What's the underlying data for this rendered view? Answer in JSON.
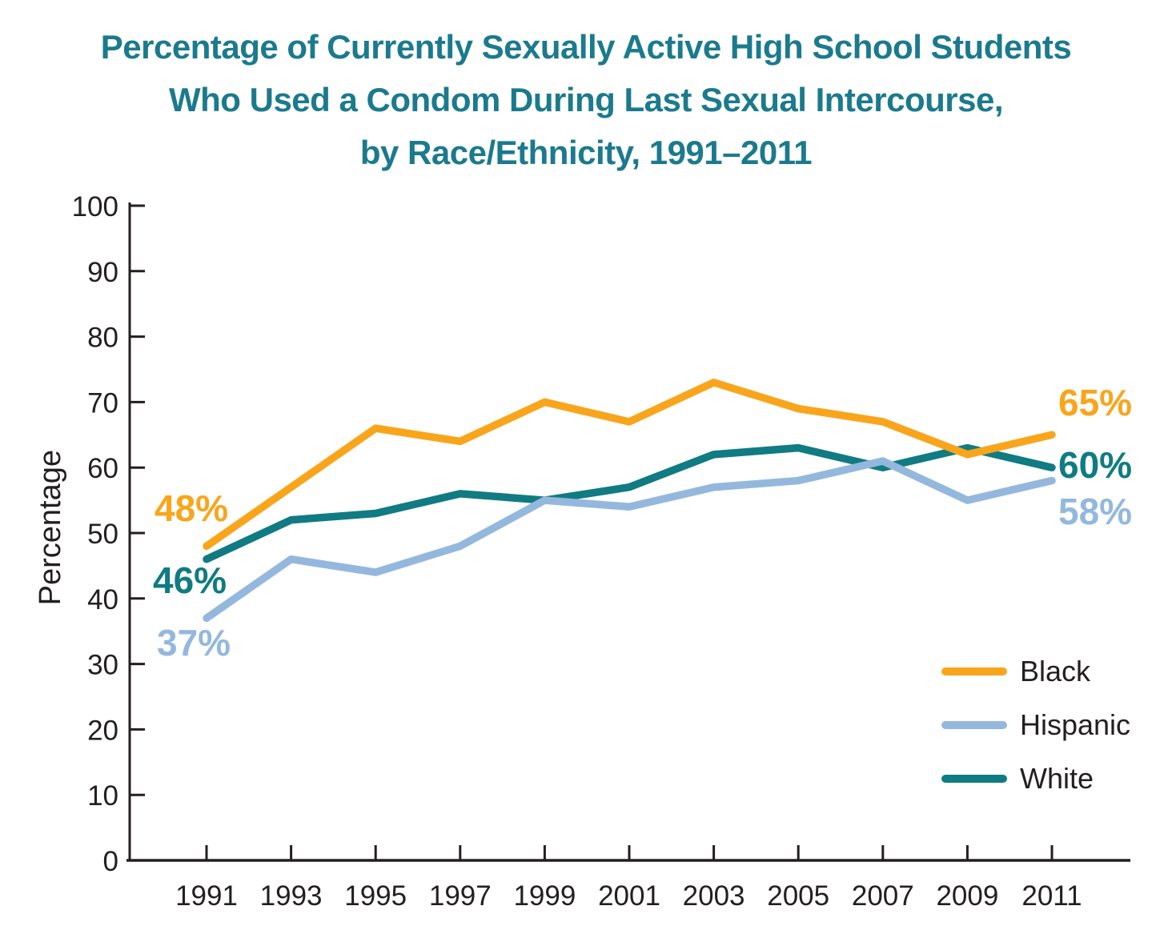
{
  "chart_data": {
    "type": "line",
    "title": "Percentage of Currently Sexually Active High School Students Who Used a Condom During Last Sexual Intercourse, by Race/Ethnicity, 1991–2011",
    "title_lines": [
      "Percentage of Currently Sexually Active High School Students",
      "Who Used a Condom During Last Sexual Intercourse,",
      "by Race/Ethnicity, 1991–2011"
    ],
    "title_color": "#1B7A8D",
    "ylabel": "Percentage",
    "xlabel": "",
    "ylim": [
      0,
      100
    ],
    "yticks": [
      0,
      10,
      20,
      30,
      40,
      50,
      60,
      70,
      80,
      90,
      100
    ],
    "x": [
      1991,
      1993,
      1995,
      1997,
      1999,
      2001,
      2003,
      2005,
      2007,
      2009,
      2011
    ],
    "series": [
      {
        "name": "Black",
        "color": "#F9A51C",
        "values": [
          48,
          57,
          66,
          64,
          70,
          67,
          73,
          69,
          67,
          62,
          65
        ],
        "start_label": "48%",
        "end_label": "65%"
      },
      {
        "name": "Hispanic",
        "color": "#94B8DD",
        "values": [
          37,
          46,
          44,
          48,
          55,
          54,
          57,
          58,
          61,
          55,
          58
        ],
        "start_label": "37%",
        "end_label": "58%"
      },
      {
        "name": "White",
        "color": "#107B82",
        "values": [
          46,
          52,
          53,
          56,
          55,
          57,
          62,
          63,
          60,
          63,
          60
        ],
        "start_label": "46%",
        "end_label": "60%"
      }
    ],
    "legend": {
      "position": "right-middle",
      "entries": [
        "Black",
        "Hispanic",
        "White"
      ]
    },
    "grid": false,
    "axis_color": "#231F20"
  }
}
